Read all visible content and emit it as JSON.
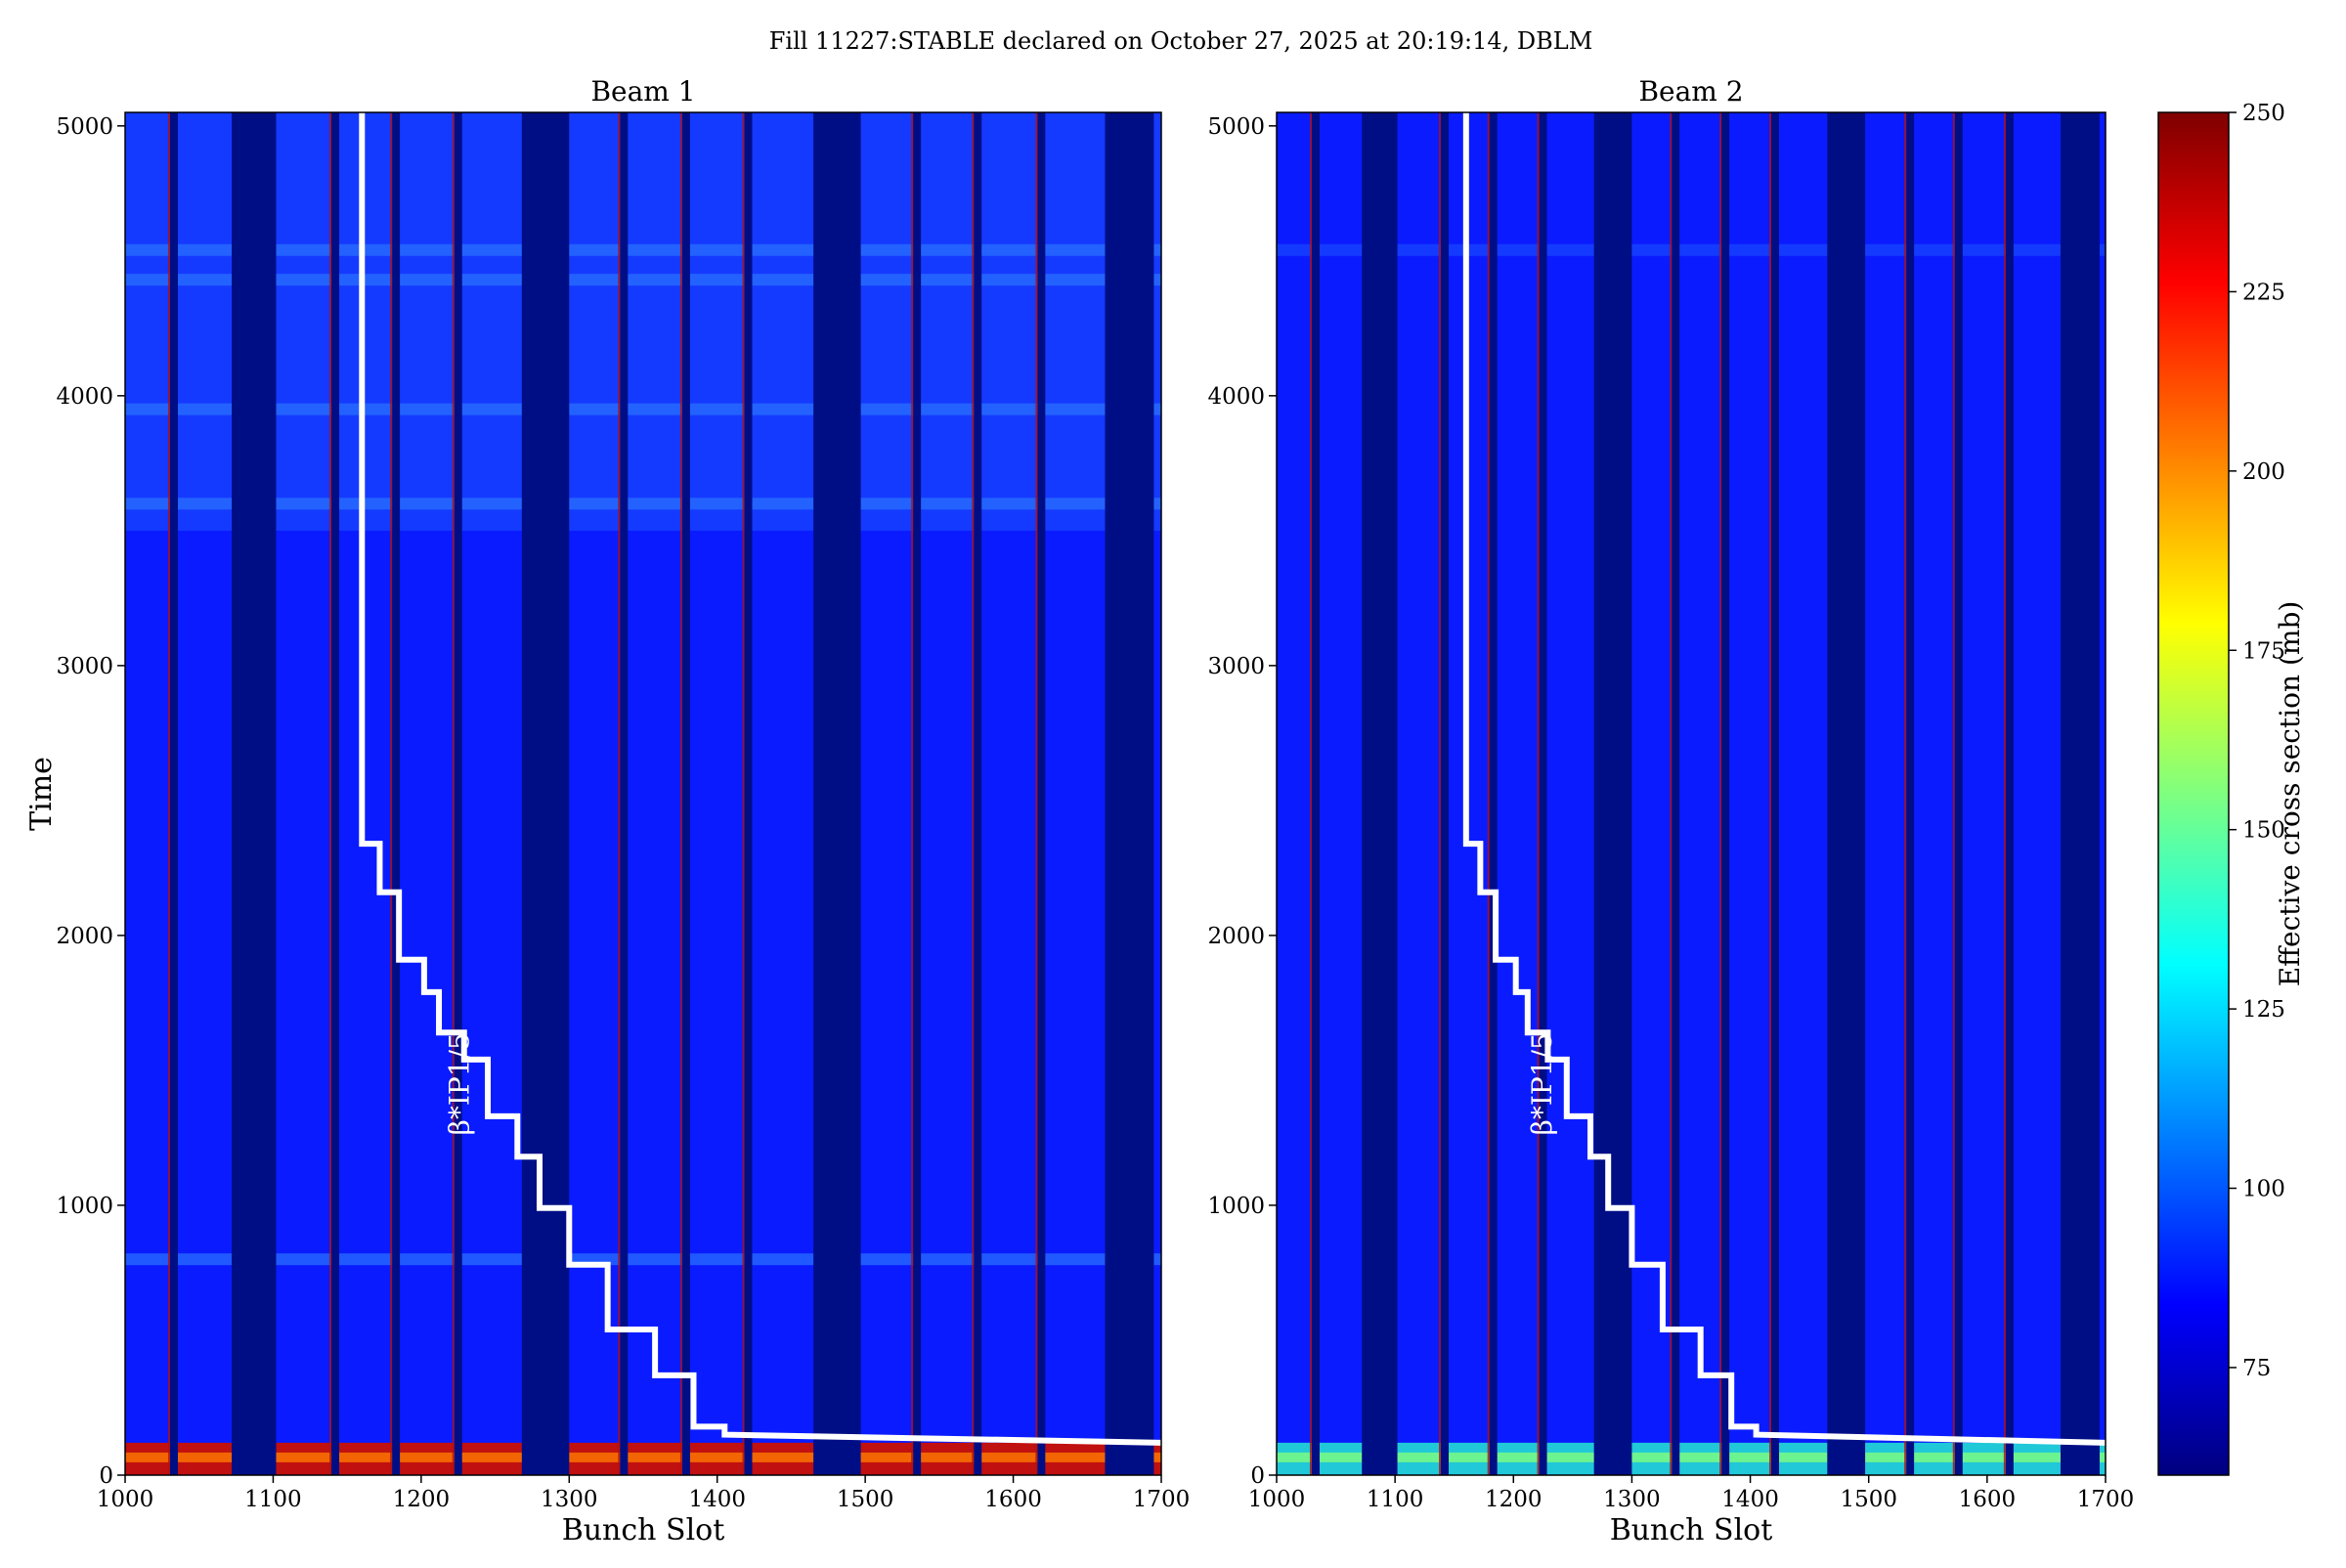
{
  "figure": {
    "suptitle": "Fill 11227:STABLE declared on October 27, 2025 at 20:19:14, DBLM"
  },
  "chart_data": [
    {
      "type": "heatmap",
      "title": "Beam 1",
      "xlabel": "Bunch Slot",
      "ylabel": "Time",
      "xlim": [
        1000,
        1700
      ],
      "ylim": [
        0,
        5050
      ],
      "xticks": [
        1000,
        1100,
        1200,
        1300,
        1400,
        1500,
        1600,
        1700
      ],
      "yticks": [
        0,
        1000,
        2000,
        3000,
        4000,
        5000
      ],
      "grid": false,
      "empty_bands": [
        [
          1072,
          1102
        ],
        [
          1268,
          1300
        ],
        [
          1465,
          1497
        ],
        [
          1662,
          1695
        ]
      ],
      "thin_gaps": [
        1033,
        1142,
        1183,
        1225,
        1337,
        1379,
        1421,
        1535,
        1576,
        1619
      ],
      "hot_band_time": [
        0,
        120
      ],
      "bright_rows": [
        4540,
        4430,
        3950,
        3600,
        800
      ],
      "beta_step_curve": {
        "label": "β*IP1/5",
        "points": [
          [
            1160,
            5050
          ],
          [
            1160,
            2340
          ],
          [
            1172,
            2340
          ],
          [
            1172,
            2160
          ],
          [
            1185,
            2160
          ],
          [
            1185,
            1910
          ],
          [
            1202,
            1910
          ],
          [
            1202,
            1790
          ],
          [
            1212,
            1790
          ],
          [
            1212,
            1640
          ],
          [
            1229,
            1640
          ],
          [
            1229,
            1540
          ],
          [
            1245,
            1540
          ],
          [
            1245,
            1330
          ],
          [
            1265,
            1330
          ],
          [
            1265,
            1180
          ],
          [
            1280,
            1180
          ],
          [
            1280,
            990
          ],
          [
            1300,
            990
          ],
          [
            1300,
            780
          ],
          [
            1326,
            780
          ],
          [
            1326,
            540
          ],
          [
            1358,
            540
          ],
          [
            1358,
            370
          ],
          [
            1384,
            370
          ],
          [
            1384,
            180
          ],
          [
            1405,
            180
          ],
          [
            1405,
            150
          ],
          [
            1700,
            120
          ]
        ]
      }
    },
    {
      "type": "heatmap",
      "title": "Beam 2",
      "xlabel": "Bunch Slot",
      "ylabel": "",
      "xlim": [
        1000,
        1700
      ],
      "ylim": [
        0,
        5050
      ],
      "xticks": [
        1000,
        1100,
        1200,
        1300,
        1400,
        1500,
        1600,
        1700
      ],
      "yticks": [
        0,
        1000,
        2000,
        3000,
        4000,
        5000
      ],
      "grid": false,
      "empty_bands": [
        [
          1072,
          1102
        ],
        [
          1268,
          1300
        ],
        [
          1465,
          1497
        ],
        [
          1662,
          1695
        ]
      ],
      "thin_gaps": [
        1033,
        1142,
        1183,
        1225,
        1337,
        1379,
        1421,
        1535,
        1576,
        1619
      ],
      "hot_band_time": [
        0,
        120
      ],
      "bright_rows": [
        4540
      ],
      "beta_step_curve": {
        "label": "β*IP1/5",
        "points": [
          [
            1160,
            5050
          ],
          [
            1160,
            2340
          ],
          [
            1172,
            2340
          ],
          [
            1172,
            2160
          ],
          [
            1185,
            2160
          ],
          [
            1185,
            1910
          ],
          [
            1202,
            1910
          ],
          [
            1202,
            1790
          ],
          [
            1212,
            1790
          ],
          [
            1212,
            1640
          ],
          [
            1229,
            1640
          ],
          [
            1229,
            1540
          ],
          [
            1245,
            1540
          ],
          [
            1245,
            1330
          ],
          [
            1265,
            1330
          ],
          [
            1265,
            1180
          ],
          [
            1280,
            1180
          ],
          [
            1280,
            990
          ],
          [
            1300,
            990
          ],
          [
            1300,
            780
          ],
          [
            1326,
            780
          ],
          [
            1326,
            540
          ],
          [
            1358,
            540
          ],
          [
            1358,
            370
          ],
          [
            1384,
            370
          ],
          [
            1384,
            180
          ],
          [
            1405,
            180
          ],
          [
            1405,
            150
          ],
          [
            1700,
            120
          ]
        ]
      }
    }
  ],
  "colorbar": {
    "label": "Effective cross section (mb)",
    "range": [
      60,
      250
    ],
    "ticks": [
      75,
      100,
      125,
      150,
      175,
      200,
      225,
      250
    ],
    "colormap": "jet",
    "colors": [
      "#00007f",
      "#0000ff",
      "#007fff",
      "#00ffff",
      "#7fff7f",
      "#ffff00",
      "#ff7f00",
      "#ff0000",
      "#7f0000"
    ]
  },
  "palette": {
    "empty": "#000e86",
    "base": "#0a1cff",
    "bright": "#2a74ff",
    "edge_red": "#b01010",
    "curve": "#ffffff"
  }
}
